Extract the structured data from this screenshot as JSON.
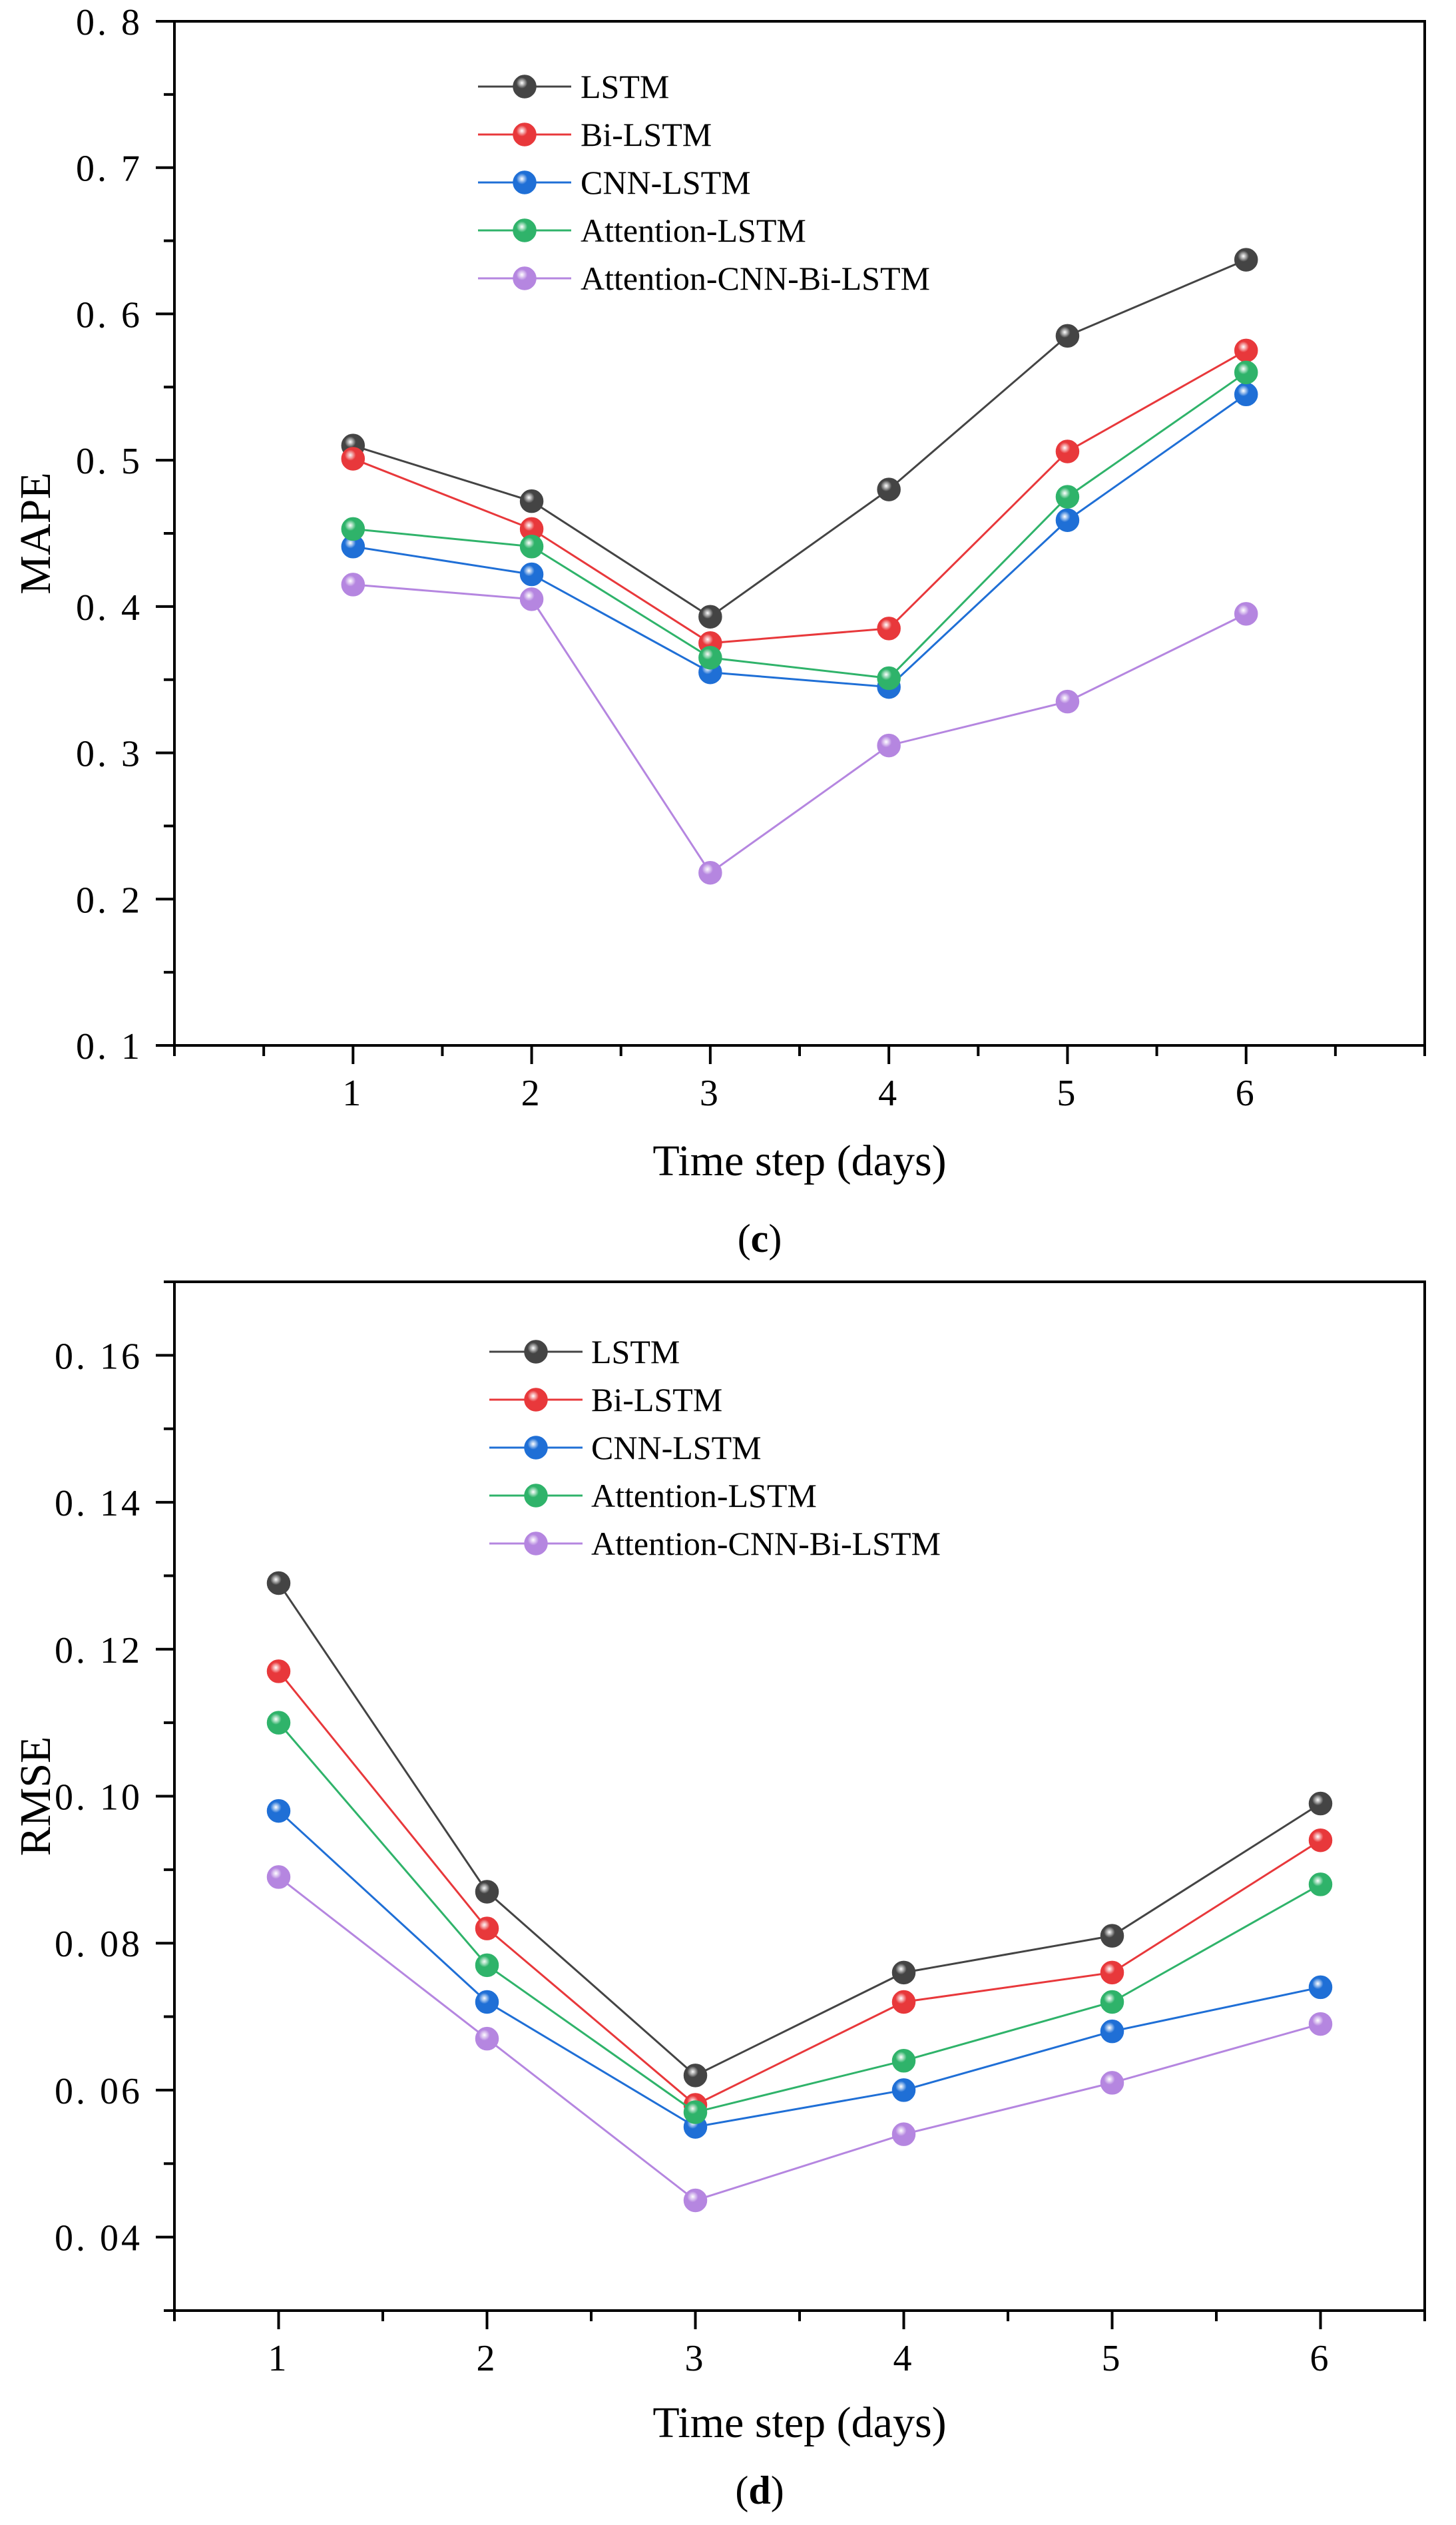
{
  "chart_data": [
    {
      "type": "line",
      "title": "",
      "panel_label": "c",
      "xlabel": "Time step (days)",
      "ylabel": "MAPE",
      "x": [
        1,
        2,
        3,
        4,
        5,
        6
      ],
      "x_tick_labels": [
        "1",
        "2",
        "3",
        "4",
        "5",
        "6"
      ],
      "xlim": [
        0.0,
        7.0
      ],
      "ylim": [
        0.1,
        0.8
      ],
      "y_ticks": [
        0.1,
        0.2,
        0.3,
        0.4,
        0.5,
        0.6,
        0.7,
        0.8
      ],
      "y_tick_labels": [
        "0. 1",
        "0. 2",
        "0. 3",
        "0. 4",
        "0. 5",
        "0. 6",
        "0. 7",
        "0. 8"
      ],
      "grid": false,
      "legend_position": "top-left",
      "series": [
        {
          "name": "LSTM",
          "color": "#444444",
          "values": [
            0.51,
            0.472,
            0.393,
            0.48,
            0.585,
            0.637
          ]
        },
        {
          "name": "Bi-LSTM",
          "color": "#e8383b",
          "values": [
            0.501,
            0.453,
            0.375,
            0.385,
            0.506,
            0.575
          ]
        },
        {
          "name": "CNN-LSTM",
          "color": "#1f6fd6",
          "values": [
            0.441,
            0.422,
            0.355,
            0.345,
            0.459,
            0.545
          ]
        },
        {
          "name": "Attention-LSTM",
          "color": "#2fb36a",
          "values": [
            0.453,
            0.441,
            0.365,
            0.351,
            0.475,
            0.56
          ]
        },
        {
          "name": "Attention-CNN-Bi-LSTM",
          "color": "#b586e0",
          "values": [
            0.415,
            0.405,
            0.218,
            0.305,
            0.335,
            0.395
          ]
        }
      ]
    },
    {
      "type": "line",
      "title": "",
      "panel_label": "d",
      "xlabel": "Time step (days)",
      "ylabel": "RMSE",
      "x": [
        1,
        2,
        3,
        4,
        5,
        6
      ],
      "x_tick_labels": [
        "1",
        "2",
        "3",
        "4",
        "5",
        "6"
      ],
      "xlim": [
        0.5,
        6.5
      ],
      "ylim": [
        0.03,
        0.17
      ],
      "y_ticks": [
        0.04,
        0.06,
        0.08,
        0.1,
        0.12,
        0.14,
        0.16
      ],
      "y_tick_labels": [
        "0. 04",
        "0. 06",
        "0. 08",
        "0. 10",
        "0. 12",
        "0. 14",
        "0. 16"
      ],
      "grid": false,
      "legend_position": "top-left",
      "series": [
        {
          "name": "LSTM",
          "color": "#444444",
          "values": [
            0.129,
            0.087,
            0.062,
            0.076,
            0.081,
            0.099
          ]
        },
        {
          "name": "Bi-LSTM",
          "color": "#e8383b",
          "values": [
            0.117,
            0.082,
            0.058,
            0.072,
            0.076,
            0.094
          ]
        },
        {
          "name": "CNN-LSTM",
          "color": "#1f6fd6",
          "values": [
            0.098,
            0.072,
            0.055,
            0.06,
            0.068,
            0.074
          ]
        },
        {
          "name": "Attention-LSTM",
          "color": "#2fb36a",
          "values": [
            0.11,
            0.077,
            0.057,
            0.064,
            0.072,
            0.088
          ]
        },
        {
          "name": "Attention-CNN-Bi-LSTM",
          "color": "#b586e0",
          "values": [
            0.089,
            0.067,
            0.045,
            0.054,
            0.061,
            0.069
          ]
        }
      ]
    }
  ]
}
